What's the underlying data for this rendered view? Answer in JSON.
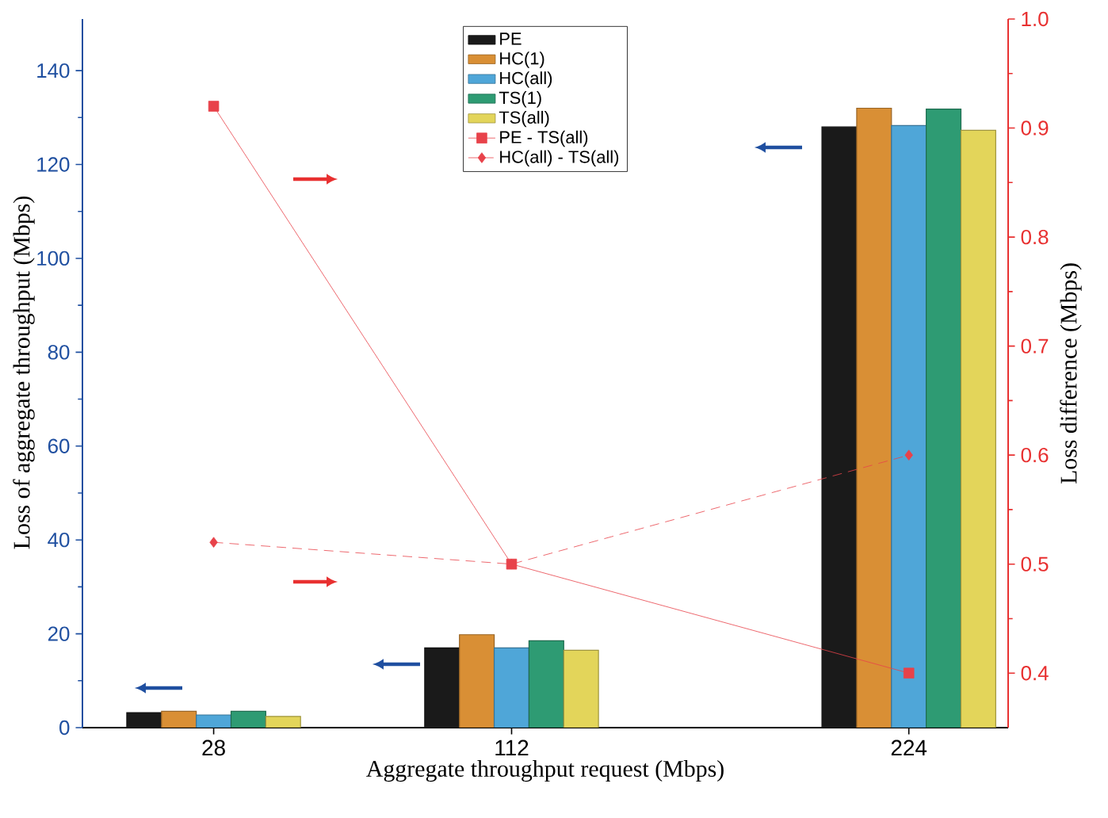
{
  "chart_data": {
    "type": "bar",
    "xlabel": "Aggregate throughput request (Mbps)",
    "ylabel": "Loss of aggregate throughput (Mbps)",
    "y2label": "Loss difference (Mbps)",
    "x": [
      28,
      112,
      224
    ],
    "xlim": [
      -9,
      252
    ],
    "xticks": [
      28,
      112,
      224
    ],
    "ylim": [
      0,
      151
    ],
    "yticks": [
      0,
      20,
      40,
      60,
      80,
      100,
      120,
      140
    ],
    "y2lim": [
      0.35,
      1.0
    ],
    "y2ticks": [
      0.4,
      0.5,
      0.6,
      0.7,
      0.8,
      0.9,
      {
        "value": 1,
        "label": "1.0"
      }
    ],
    "legend": "top",
    "series": [
      {
        "name": "PE",
        "color": "#1a1a1a",
        "values": [
          3.2,
          17,
          128
        ]
      },
      {
        "name": "HC(1)",
        "color": "#d98f35",
        "values": [
          3.5,
          19.8,
          132
        ]
      },
      {
        "name": "HC(all)",
        "color": "#4fa6d8",
        "values": [
          2.7,
          17,
          128.3
        ]
      },
      {
        "name": "TS(1)",
        "color": "#2e9b73",
        "values": [
          3.5,
          18.5,
          131.8
        ]
      },
      {
        "name": "TS(all)",
        "color": "#e3d55a",
        "values": [
          2.4,
          16.5,
          127.3
        ]
      },
      {
        "name": "PE - TS(all)",
        "type": "line",
        "axis": "y2",
        "color": "#e8424a",
        "marker": "square",
        "line_style": "solid",
        "values": [
          0.92,
          0.5,
          0.4
        ]
      },
      {
        "name": "HC(all) - TS(all)",
        "type": "line",
        "axis": "y2",
        "color": "#e8424a",
        "marker": "diamond",
        "line_style": "dashed",
        "values": [
          0.52,
          0.5,
          0.6
        ]
      }
    ]
  }
}
